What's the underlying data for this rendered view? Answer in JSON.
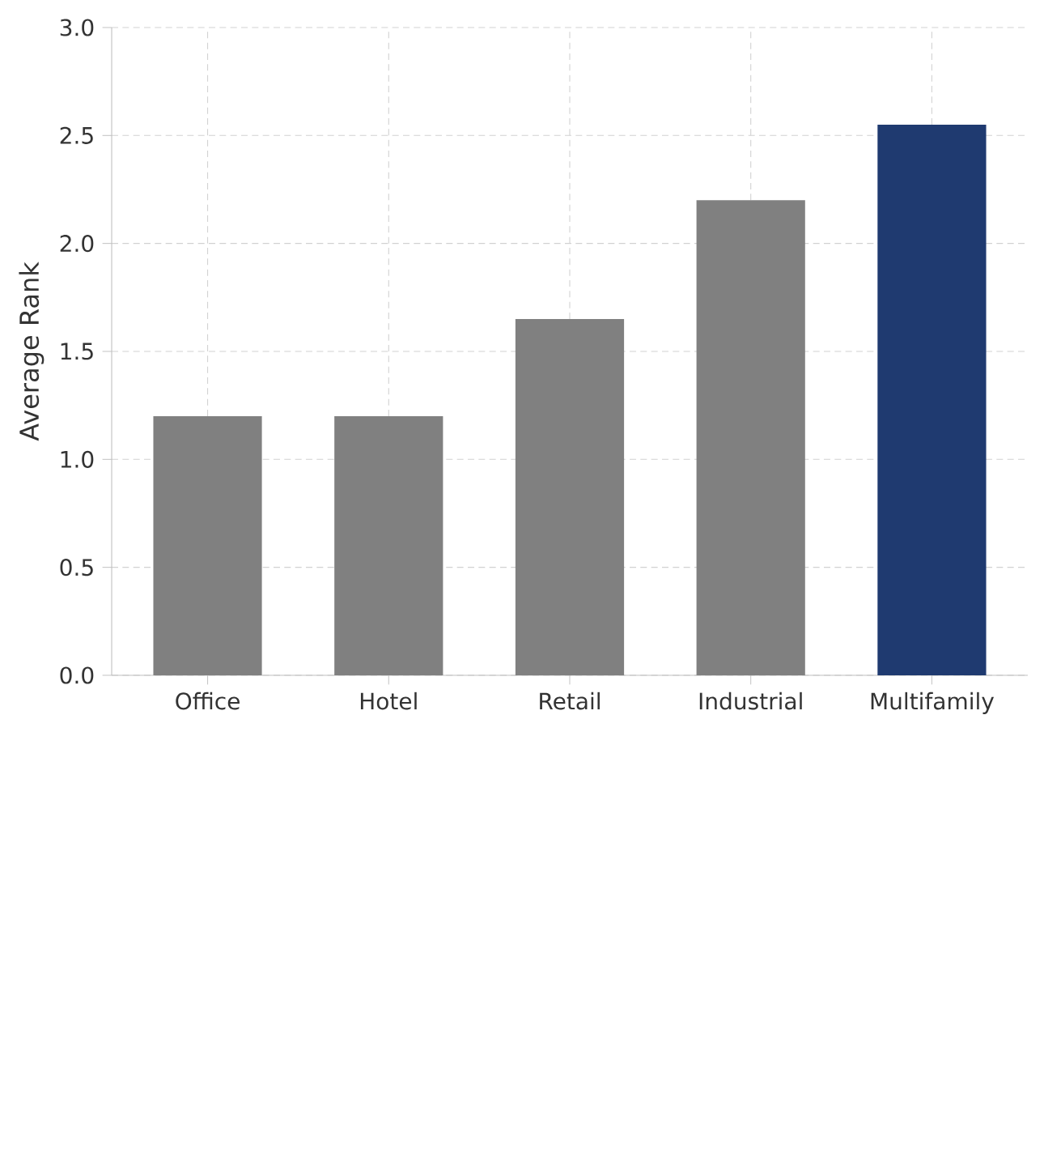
{
  "chart_data": {
    "type": "bar",
    "ylabel": "Average Rank",
    "categories": [
      "Office",
      "Hotel",
      "Retail",
      "Industrial",
      "Multifamily"
    ],
    "values": [
      1.2,
      1.2,
      1.65,
      2.2,
      2.55
    ],
    "colors": [
      "#808080",
      "#808080",
      "#808080",
      "#808080",
      "#1f3a70"
    ],
    "ylim": [
      0,
      3.0
    ],
    "yticks": [
      {
        "value": 0,
        "label": "0.0"
      },
      {
        "value": 0.5,
        "label": "0.5"
      },
      {
        "value": 1.0,
        "label": "1.0"
      },
      {
        "value": 1.5,
        "label": "1.5"
      },
      {
        "value": 2.0,
        "label": "2.0"
      },
      {
        "value": 2.5,
        "label": "2.5"
      },
      {
        "value": 3.0,
        "label": "3.0"
      }
    ],
    "grid": true
  }
}
